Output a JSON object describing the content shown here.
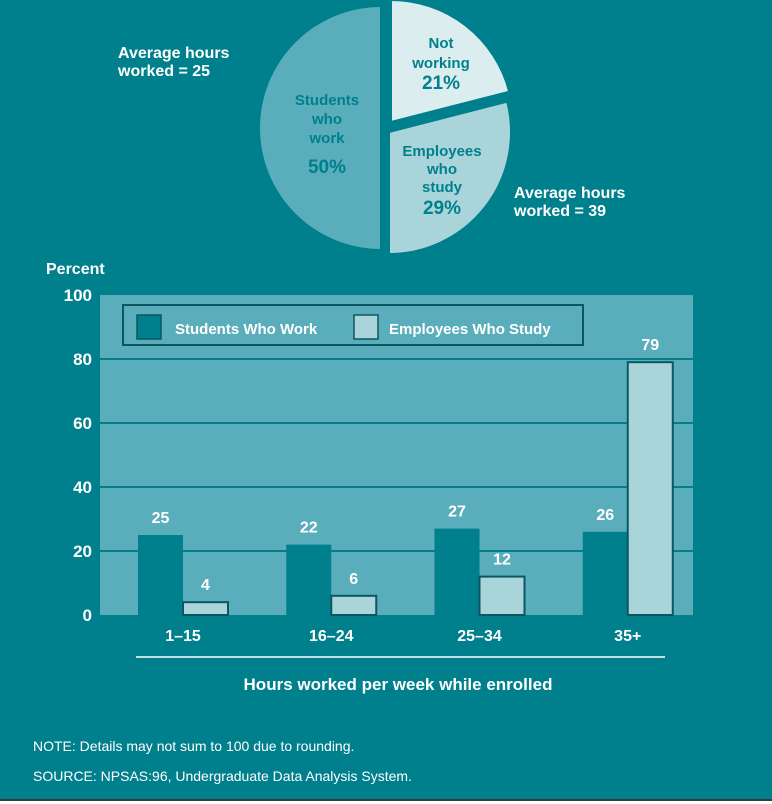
{
  "chart_data": [
    {
      "type": "pie",
      "slices": [
        {
          "label": [
            "Not",
            "working"
          ],
          "value": 21,
          "value_label": "21%"
        },
        {
          "label": [
            "Employees",
            "who",
            "study"
          ],
          "value": 29,
          "value_label": "29%"
        },
        {
          "label": [
            "Students",
            "who",
            "work"
          ],
          "value": 50,
          "value_label": "50%"
        }
      ],
      "annotations": [
        {
          "lines": [
            "Average hours",
            "worked = 25"
          ]
        },
        {
          "lines": [
            "Average hours",
            "worked = 39"
          ]
        }
      ]
    },
    {
      "type": "bar",
      "categories": [
        "1–15",
        "16–24",
        "25–34",
        "35+"
      ],
      "series": [
        {
          "name": "Students Who Work",
          "values": [
            25,
            22,
            27,
            26
          ]
        },
        {
          "name": "Employees Who Study",
          "values": [
            4,
            6,
            12,
            79
          ]
        }
      ],
      "data_labels": [
        [
          "25",
          "22",
          "27",
          "26"
        ],
        [
          "4",
          "6",
          "12",
          "79"
        ]
      ],
      "ylabel": "Percent",
      "xlabel": "Hours worked per week while enrolled",
      "ylim": [
        0,
        100
      ],
      "yticks": [
        "0",
        "20",
        "40",
        "60",
        "80",
        "100"
      ],
      "grid": true,
      "legend": "top-left"
    }
  ],
  "notes": {
    "note": "NOTE: Details may not sum to 100 due to rounding.",
    "source": "SOURCE: NPSAS:96, Undergraduate Data Analysis System."
  },
  "colors": {
    "background": "#007f8c",
    "plot_area": "#5aaebb",
    "students_bar": "#007f8c",
    "employees_bar": "#a9d5da",
    "pie_students": "#5aaebb",
    "pie_employees": "#a9d5da",
    "pie_not_working": "#dcedf0",
    "outline": "#0b5660"
  }
}
